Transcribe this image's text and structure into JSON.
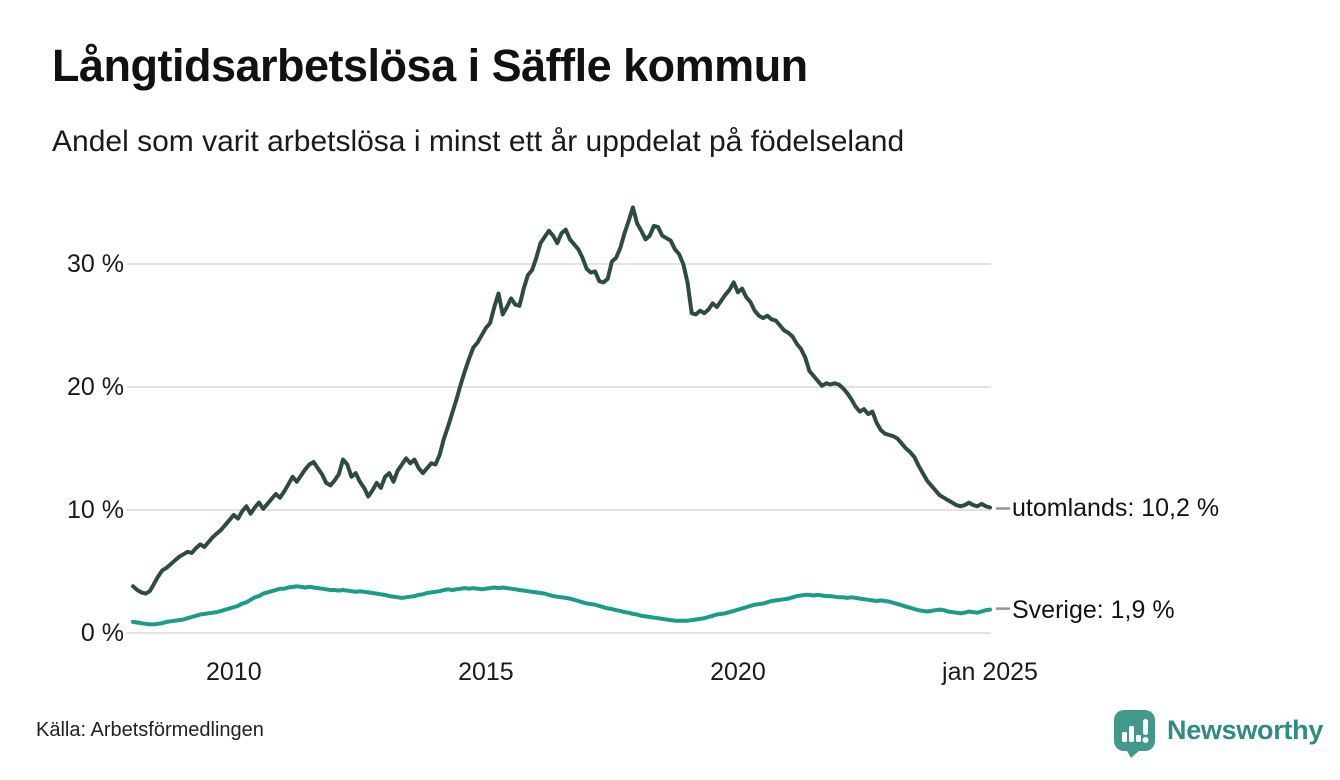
{
  "header": {
    "title": "Långtidsarbetslösa i Säffle kommun",
    "subtitle": "Andel som varit arbetslösa i minst ett år uppdelat på födelseland"
  },
  "chart_data": {
    "type": "line",
    "title": "Långtidsarbetslösa i Säffle kommun",
    "subtitle": "Andel som varit arbetslösa i minst ett år uppdelat på födelseland",
    "unit": "%",
    "frequency": "monthly",
    "period_start": "jan 2008",
    "period_end": "jan 2025",
    "ylim": [
      0,
      36
    ],
    "grid": true,
    "legend_position": "right-end-labels",
    "grid_color": "#e2e2e2",
    "y_ticks": [
      {
        "label": "0 %",
        "value": 0
      },
      {
        "label": "10 %",
        "value": 10
      },
      {
        "label": "20 %",
        "value": 20
      },
      {
        "label": "30 %",
        "value": 30
      }
    ],
    "x_ticks": [
      {
        "label": "2010",
        "month_index": 24
      },
      {
        "label": "2015",
        "month_index": 84
      },
      {
        "label": "2020",
        "month_index": 144
      },
      {
        "label": "jan 2025",
        "month_index": 204
      }
    ],
    "series": [
      {
        "name": "utomlands",
        "color": "#2d4c40",
        "end_value": 10.2,
        "end_label": "utomlands: 10,2 %",
        "values": [
          3.8,
          3.5,
          3.3,
          3.2,
          3.4,
          4.0,
          4.6,
          5.1,
          5.3,
          5.6,
          5.9,
          6.2,
          6.4,
          6.6,
          6.5,
          6.9,
          7.2,
          7.0,
          7.4,
          7.8,
          8.1,
          8.4,
          8.8,
          9.2,
          9.6,
          9.3,
          9.9,
          10.3,
          9.7,
          10.2,
          10.6,
          10.1,
          10.5,
          10.9,
          11.3,
          11.0,
          11.5,
          12.1,
          12.7,
          12.3,
          12.8,
          13.3,
          13.7,
          13.9,
          13.4,
          12.9,
          12.2,
          12.0,
          12.4,
          12.9,
          14.1,
          13.7,
          12.7,
          13.0,
          12.3,
          11.8,
          11.1,
          11.6,
          12.2,
          11.8,
          12.7,
          13.0,
          12.3,
          13.2,
          13.7,
          14.2,
          13.8,
          14.1,
          13.4,
          13.0,
          13.4,
          13.8,
          13.7,
          14.5,
          15.8,
          16.8,
          17.9,
          19.0,
          20.2,
          21.3,
          22.3,
          23.2,
          23.6,
          24.2,
          24.8,
          25.2,
          26.5,
          27.6,
          25.9,
          26.5,
          27.2,
          26.7,
          26.6,
          28.0,
          29.1,
          29.5,
          30.5,
          31.7,
          32.2,
          32.7,
          32.3,
          31.7,
          32.5,
          32.8,
          32.0,
          31.6,
          31.2,
          30.5,
          29.6,
          29.3,
          29.4,
          28.6,
          28.5,
          28.8,
          30.2,
          30.5,
          31.3,
          32.5,
          33.5,
          34.6,
          33.3,
          32.7,
          32.0,
          32.3,
          33.1,
          33.0,
          32.3,
          32.1,
          31.9,
          31.2,
          30.8,
          30.0,
          28.5,
          26.0,
          25.9,
          26.2,
          26.0,
          26.3,
          26.8,
          26.5,
          27.0,
          27.5,
          27.9,
          28.5,
          27.7,
          28.0,
          27.3,
          26.9,
          26.2,
          25.8,
          25.6,
          25.8,
          25.5,
          25.4,
          25.0,
          24.6,
          24.4,
          24.1,
          23.5,
          23.1,
          22.4,
          21.3,
          20.9,
          20.5,
          20.1,
          20.3,
          20.2,
          20.3,
          20.2,
          19.9,
          19.5,
          19.0,
          18.4,
          18.0,
          18.2,
          17.8,
          18.0,
          17.1,
          16.5,
          16.2,
          16.1,
          16.0,
          15.8,
          15.4,
          15.0,
          14.7,
          14.3,
          13.6,
          13.0,
          12.4,
          12.0,
          11.6,
          11.2,
          11.0,
          10.8,
          10.6,
          10.4,
          10.3,
          10.4,
          10.6,
          10.4,
          10.3,
          10.5,
          10.3,
          10.2
        ]
      },
      {
        "name": "Sverige",
        "color": "#1b9b8b",
        "end_value": 1.9,
        "end_label": "Sverige:  1,9 %",
        "values": [
          0.9,
          0.85,
          0.8,
          0.75,
          0.7,
          0.7,
          0.75,
          0.8,
          0.9,
          0.95,
          1.0,
          1.05,
          1.1,
          1.2,
          1.3,
          1.4,
          1.5,
          1.55,
          1.6,
          1.65,
          1.7,
          1.8,
          1.9,
          2.0,
          2.1,
          2.2,
          2.4,
          2.5,
          2.7,
          2.9,
          3.0,
          3.2,
          3.3,
          3.4,
          3.5,
          3.6,
          3.6,
          3.7,
          3.75,
          3.8,
          3.75,
          3.7,
          3.75,
          3.7,
          3.65,
          3.6,
          3.55,
          3.5,
          3.5,
          3.45,
          3.5,
          3.45,
          3.4,
          3.35,
          3.4,
          3.35,
          3.3,
          3.25,
          3.2,
          3.15,
          3.1,
          3.0,
          2.95,
          2.9,
          2.85,
          2.9,
          2.95,
          3.0,
          3.1,
          3.15,
          3.25,
          3.3,
          3.35,
          3.4,
          3.5,
          3.55,
          3.5,
          3.55,
          3.6,
          3.65,
          3.6,
          3.65,
          3.6,
          3.55,
          3.6,
          3.65,
          3.7,
          3.65,
          3.7,
          3.65,
          3.6,
          3.55,
          3.5,
          3.45,
          3.4,
          3.35,
          3.3,
          3.25,
          3.2,
          3.1,
          3.0,
          2.95,
          2.9,
          2.85,
          2.8,
          2.7,
          2.6,
          2.5,
          2.4,
          2.35,
          2.3,
          2.2,
          2.1,
          2.0,
          1.95,
          1.85,
          1.8,
          1.7,
          1.65,
          1.55,
          1.5,
          1.4,
          1.35,
          1.3,
          1.25,
          1.2,
          1.15,
          1.1,
          1.05,
          1.0,
          1.0,
          1.0,
          1.0,
          1.05,
          1.1,
          1.15,
          1.2,
          1.3,
          1.4,
          1.5,
          1.55,
          1.6,
          1.7,
          1.8,
          1.9,
          2.0,
          2.1,
          2.2,
          2.3,
          2.35,
          2.4,
          2.5,
          2.6,
          2.65,
          2.7,
          2.75,
          2.8,
          2.9,
          3.0,
          3.05,
          3.1,
          3.1,
          3.05,
          3.1,
          3.05,
          3.0,
          3.0,
          2.95,
          2.9,
          2.9,
          2.85,
          2.9,
          2.85,
          2.8,
          2.75,
          2.7,
          2.65,
          2.6,
          2.65,
          2.6,
          2.55,
          2.45,
          2.35,
          2.25,
          2.15,
          2.05,
          1.95,
          1.85,
          1.8,
          1.75,
          1.8,
          1.85,
          1.9,
          1.85,
          1.75,
          1.7,
          1.65,
          1.6,
          1.65,
          1.75,
          1.7,
          1.65,
          1.75,
          1.85,
          1.9
        ]
      }
    ]
  },
  "footer": {
    "source": "Källa: Arbetsförmedlingen",
    "brand": "Newsworthy"
  },
  "colors": {
    "background": "#ffffff",
    "series_utomlands": "#2d4c40",
    "series_sverige": "#1b9b8b",
    "gridline": "#e2e2e2",
    "connector_dash": "#949494",
    "brand_teal": "#2e8c84",
    "text": "#1a1a1a"
  }
}
